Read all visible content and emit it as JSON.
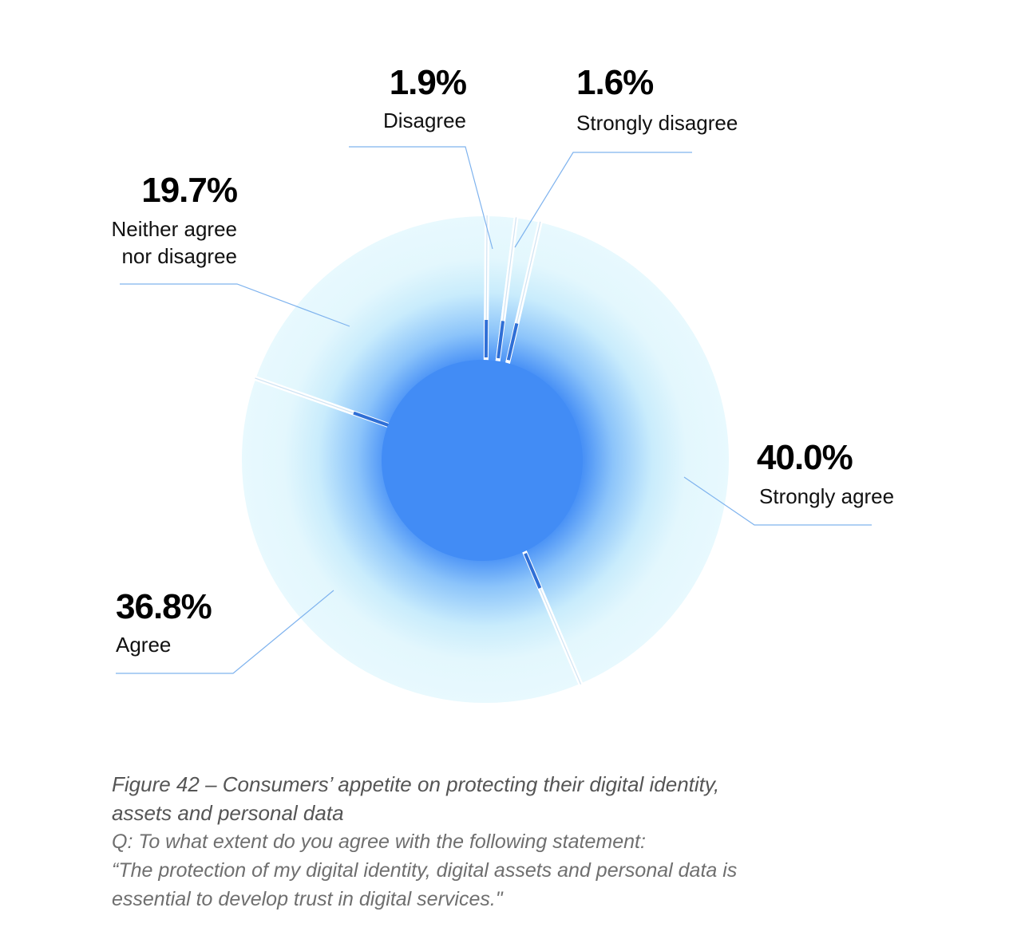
{
  "chart_data": {
    "type": "pie",
    "style": "donut",
    "categories": [
      "Strongly agree",
      "Agree",
      "Neither agree nor disagree",
      "Disagree",
      "Strongly disagree"
    ],
    "values": [
      40.0,
      36.8,
      19.7,
      1.9,
      1.6
    ],
    "unit": "%",
    "value_labels": [
      "40.0%",
      "36.8%",
      "19.7%",
      "1.9%",
      "1.6%"
    ],
    "label_lines": [
      [
        "Strongly agree"
      ],
      [
        "Agree"
      ],
      [
        "Neither agree",
        "nor disagree"
      ],
      [
        "Disagree"
      ],
      [
        "Strongly disagree"
      ]
    ],
    "colors": {
      "outer_ring": "#e3f7fd",
      "center": "#428cf5",
      "gradient_mid": "#8cc4fa",
      "leader_line": "#7fb3ee"
    }
  },
  "caption": {
    "title_line1": "Figure 42 – Consumers’ appetite on protecting their digital identity,",
    "title_line2": "assets and personal data",
    "question_line1": "Q: To what extent do you agree with the following statement:",
    "question_line2": "“The protection of my digital identity, digital assets and personal data is",
    "question_line3": "essential to develop trust in digital services.\""
  }
}
